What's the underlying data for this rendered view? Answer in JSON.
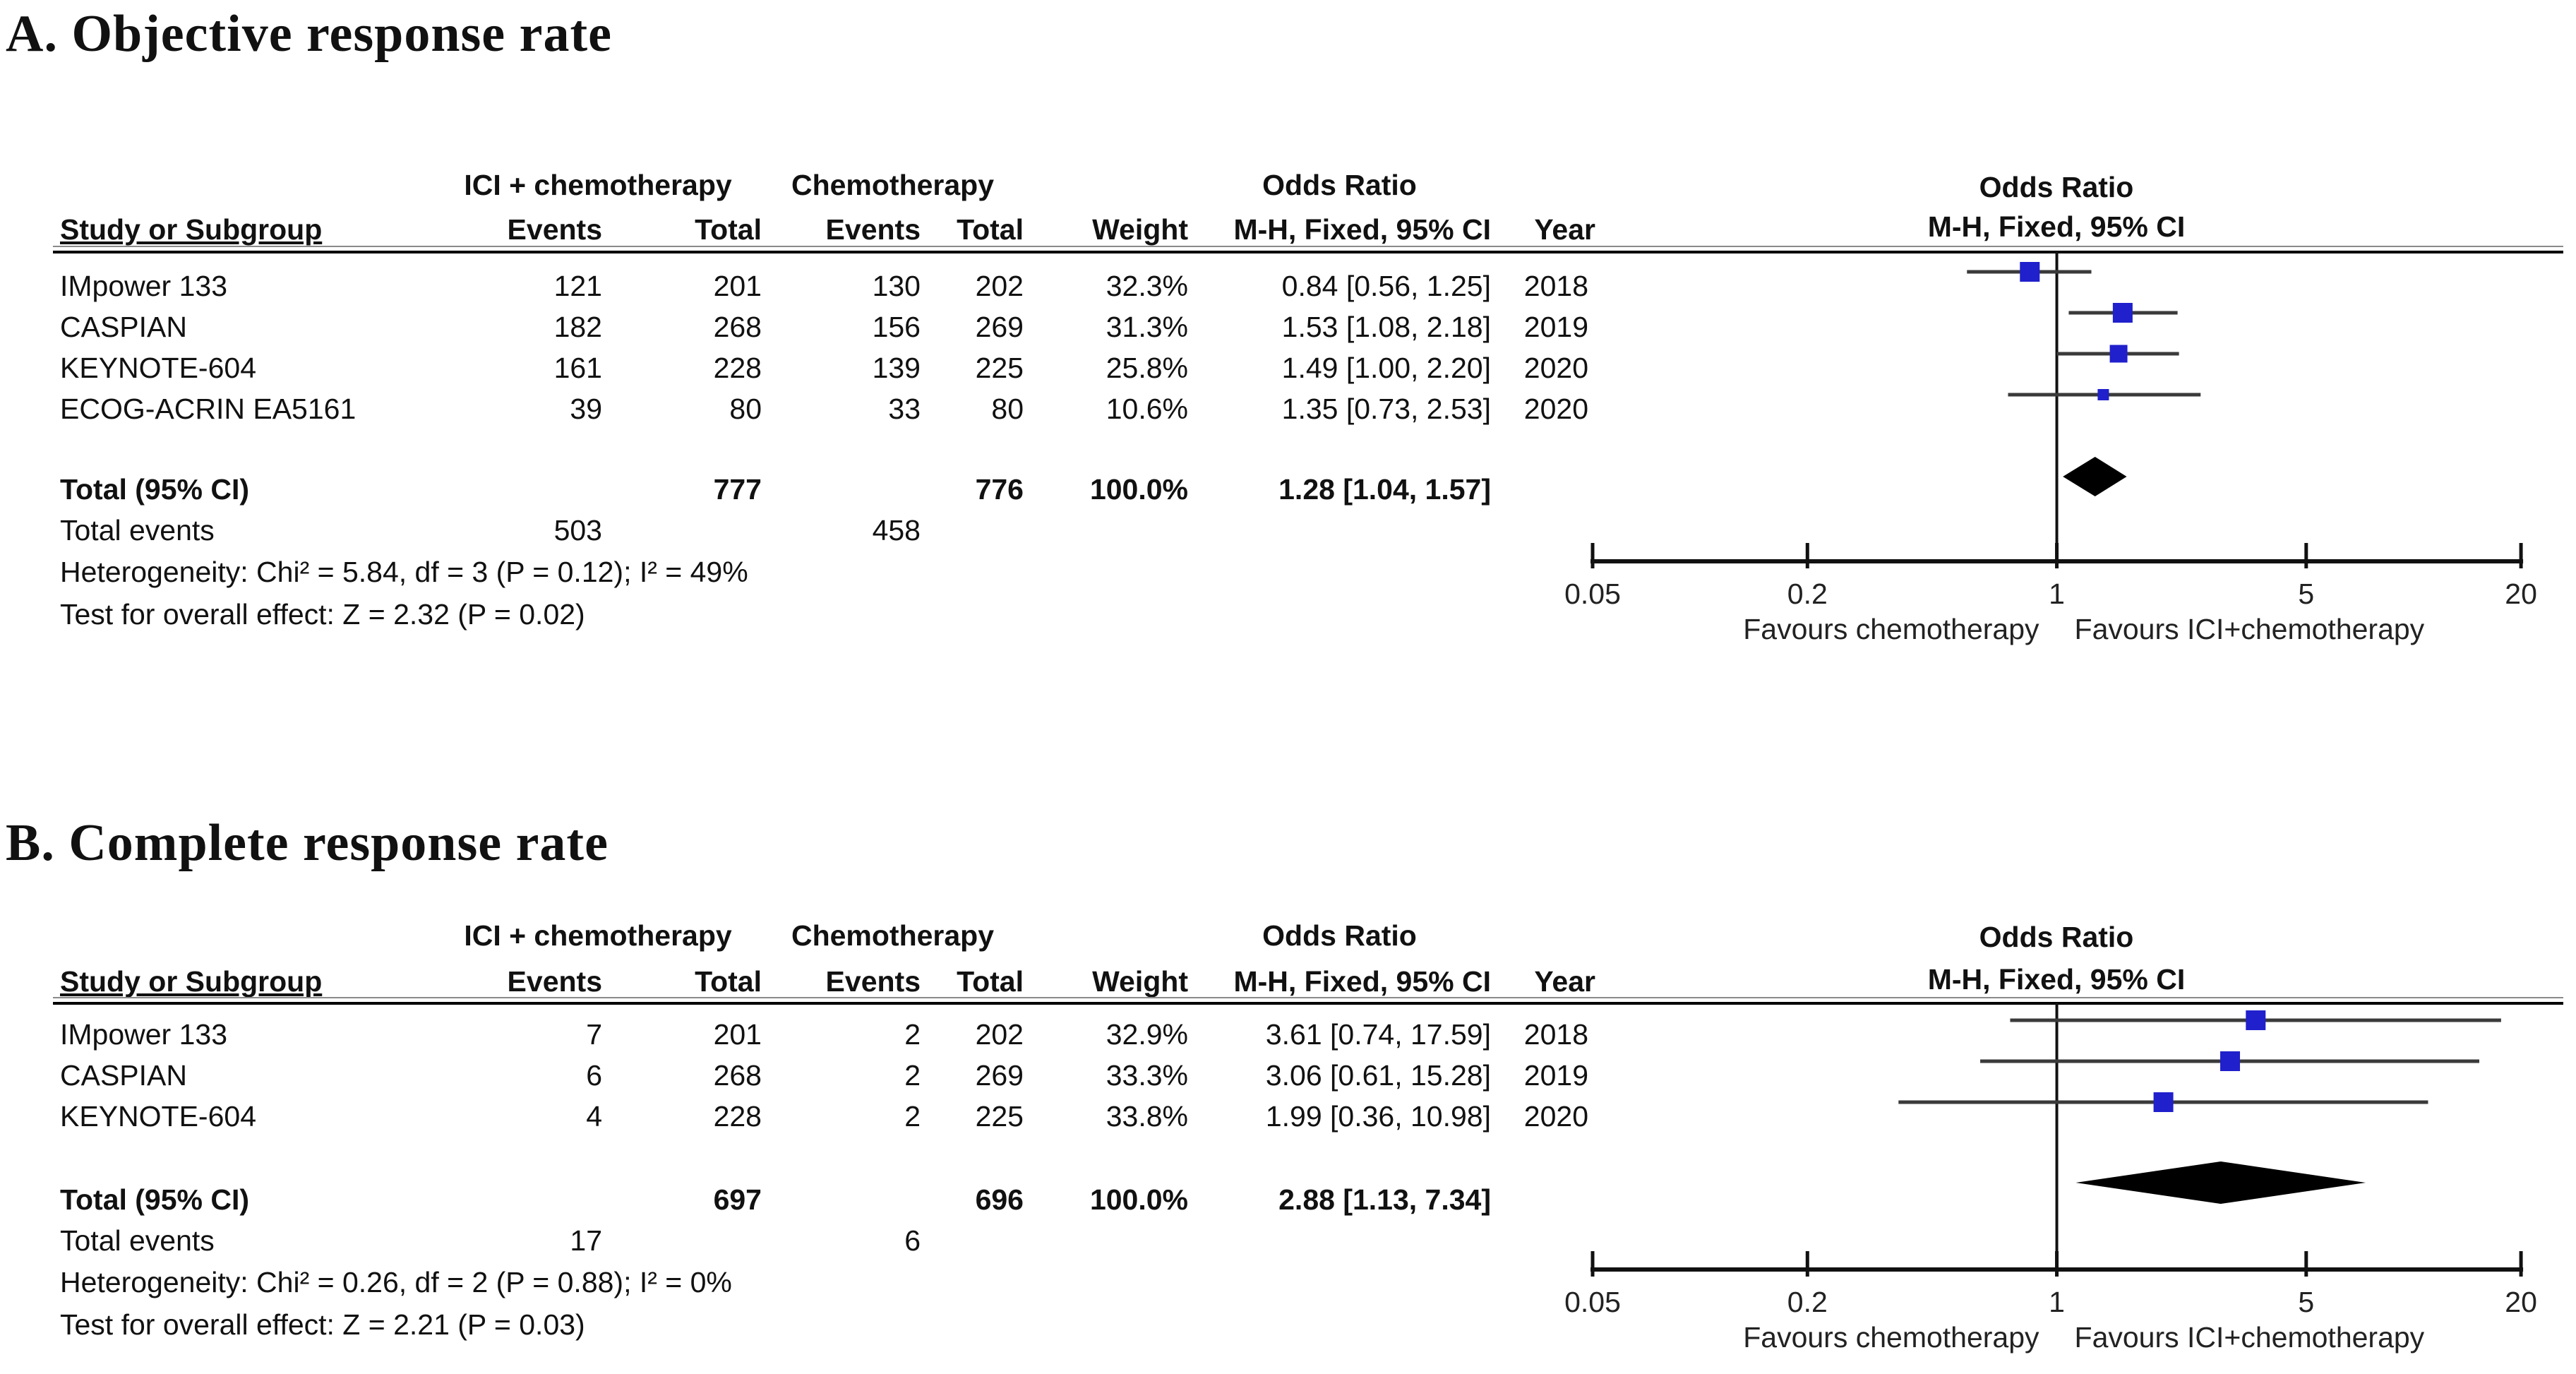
{
  "chart_data": [
    {
      "type": "forest",
      "panel": "A",
      "title": "A. Objective response rate",
      "headers": {
        "exp_group": "ICI + chemotherapy",
        "ctrl_group": "Chemotherapy",
        "effect": "Odds Ratio",
        "study": "Study or Subgroup",
        "events": "Events",
        "total": "Total",
        "weight": "Weight",
        "or_ci": "M-H, Fixed, 95% CI",
        "year": "Year"
      },
      "rows": [
        {
          "study": "IMpower 133",
          "exp_events": 121,
          "exp_total": 201,
          "ctrl_events": 130,
          "ctrl_total": 202,
          "weight": "32.3%",
          "weight_pct": 32.3,
          "or": 0.84,
          "ci_low": 0.56,
          "ci_high": 1.25,
          "or_ci": "0.84 [0.56, 1.25]",
          "year": 2018
        },
        {
          "study": "CASPIAN",
          "exp_events": 182,
          "exp_total": 268,
          "ctrl_events": 156,
          "ctrl_total": 269,
          "weight": "31.3%",
          "weight_pct": 31.3,
          "or": 1.53,
          "ci_low": 1.08,
          "ci_high": 2.18,
          "or_ci": "1.53 [1.08, 2.18]",
          "year": 2019
        },
        {
          "study": "KEYNOTE-604",
          "exp_events": 161,
          "exp_total": 228,
          "ctrl_events": 139,
          "ctrl_total": 225,
          "weight": "25.8%",
          "weight_pct": 25.8,
          "or": 1.49,
          "ci_low": 1.0,
          "ci_high": 2.2,
          "or_ci": "1.49 [1.00, 2.20]",
          "year": 2020
        },
        {
          "study": "ECOG-ACRIN EA5161",
          "exp_events": 39,
          "exp_total": 80,
          "ctrl_events": 33,
          "ctrl_total": 80,
          "weight": "10.6%",
          "weight_pct": 10.6,
          "or": 1.35,
          "ci_low": 0.73,
          "ci_high": 2.53,
          "or_ci": "1.35 [0.73, 2.53]",
          "year": 2020
        }
      ],
      "total": {
        "label": "Total (95% CI)",
        "exp_total": 777,
        "ctrl_total": 776,
        "weight": "100.0%",
        "or": 1.28,
        "ci_low": 1.04,
        "ci_high": 1.57,
        "or_ci": "1.28 [1.04, 1.57]"
      },
      "total_events": {
        "label": "Total events",
        "exp": 503,
        "ctrl": 458
      },
      "heterogeneity": "Heterogeneity: Chi² = 5.84, df = 3 (P = 0.12); I² = 49%",
      "overall_effect": "Test for overall effect: Z = 2.32 (P = 0.02)",
      "axis": {
        "scale": "log",
        "min": 0.05,
        "max": 20,
        "ticks": [
          0.05,
          0.2,
          1,
          5,
          20
        ],
        "tick_labels": [
          "0.05",
          "0.2",
          "1",
          "5",
          "20"
        ],
        "favours_left": "Favours chemotherapy",
        "favours_right": "Favours ICI+chemotherapy"
      },
      "marker_color": "#2020cc",
      "ci_color": "#3a3a3a",
      "line_color": "#111111"
    },
    {
      "type": "forest",
      "panel": "B",
      "title": "B. Complete response rate",
      "headers": {
        "exp_group": "ICI + chemotherapy",
        "ctrl_group": "Chemotherapy",
        "effect": "Odds Ratio",
        "study": "Study or Subgroup",
        "events": "Events",
        "total": "Total",
        "weight": "Weight",
        "or_ci": "M-H, Fixed, 95% CI",
        "year": "Year"
      },
      "rows": [
        {
          "study": "IMpower 133",
          "exp_events": 7,
          "exp_total": 201,
          "ctrl_events": 2,
          "ctrl_total": 202,
          "weight": "32.9%",
          "weight_pct": 32.9,
          "or": 3.61,
          "ci_low": 0.74,
          "ci_high": 17.59,
          "or_ci": "3.61 [0.74, 17.59]",
          "year": 2018
        },
        {
          "study": "CASPIAN",
          "exp_events": 6,
          "exp_total": 268,
          "ctrl_events": 2,
          "ctrl_total": 269,
          "weight": "33.3%",
          "weight_pct": 33.3,
          "or": 3.06,
          "ci_low": 0.61,
          "ci_high": 15.28,
          "or_ci": "3.06 [0.61, 15.28]",
          "year": 2019
        },
        {
          "study": "KEYNOTE-604",
          "exp_events": 4,
          "exp_total": 228,
          "ctrl_events": 2,
          "ctrl_total": 225,
          "weight": "33.8%",
          "weight_pct": 33.8,
          "or": 1.99,
          "ci_low": 0.36,
          "ci_high": 10.98,
          "or_ci": "1.99 [0.36, 10.98]",
          "year": 2020
        }
      ],
      "total": {
        "label": "Total (95% CI)",
        "exp_total": 697,
        "ctrl_total": 696,
        "weight": "100.0%",
        "or": 2.88,
        "ci_low": 1.13,
        "ci_high": 7.34,
        "or_ci": "2.88 [1.13, 7.34]"
      },
      "total_events": {
        "label": "Total events",
        "exp": 17,
        "ctrl": 6
      },
      "heterogeneity": "Heterogeneity: Chi² = 0.26, df = 2 (P = 0.88); I² = 0%",
      "overall_effect": "Test for overall effect: Z = 2.21 (P = 0.03)",
      "axis": {
        "scale": "log",
        "min": 0.05,
        "max": 20,
        "ticks": [
          0.05,
          0.2,
          1,
          5,
          20
        ],
        "tick_labels": [
          "0.05",
          "0.2",
          "1",
          "5",
          "20"
        ],
        "favours_left": "Favours chemotherapy",
        "favours_right": "Favours ICI+chemotherapy"
      },
      "marker_color": "#2020cc",
      "ci_color": "#3a3a3a",
      "line_color": "#111111"
    }
  ]
}
